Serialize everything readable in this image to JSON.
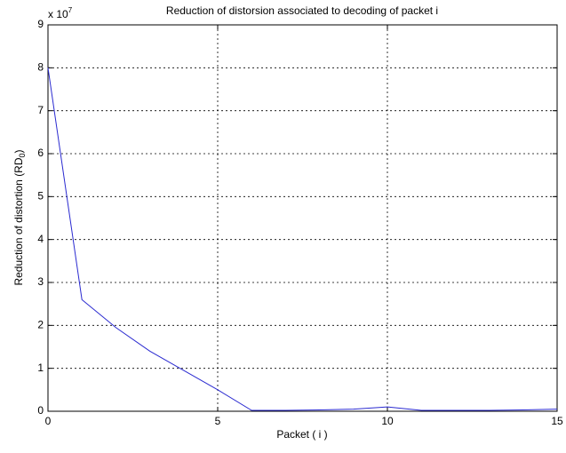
{
  "chart_data": {
    "type": "line",
    "title": "Reduction of distorsion associated to decoding of packet i",
    "xlabel": "Packet ( i )",
    "ylabel": "Reduction of distortion (RD",
    "ylabel_sub": "0",
    "ylabel_end": ")",
    "y_multiplier": "x 10",
    "y_multiplier_exp": "7",
    "x": [
      0,
      1,
      2,
      3,
      4,
      5,
      6,
      7,
      8,
      9,
      10,
      11,
      12,
      13,
      14,
      15
    ],
    "series": [
      {
        "color": "#2a2ad0",
        "values": [
          8.0,
          2.6,
          1.95,
          1.4,
          0.95,
          0.5,
          0.02,
          0.02,
          0.03,
          0.05,
          0.1,
          0.02,
          0.02,
          0.02,
          0.03,
          0.05
        ]
      }
    ],
    "xlim": [
      0,
      15
    ],
    "xticks": [
      0,
      5,
      10,
      15
    ],
    "ylim": [
      0,
      9
    ],
    "yticks": [
      0,
      1,
      2,
      3,
      4,
      5,
      6,
      7,
      8,
      9
    ],
    "grid": true
  }
}
